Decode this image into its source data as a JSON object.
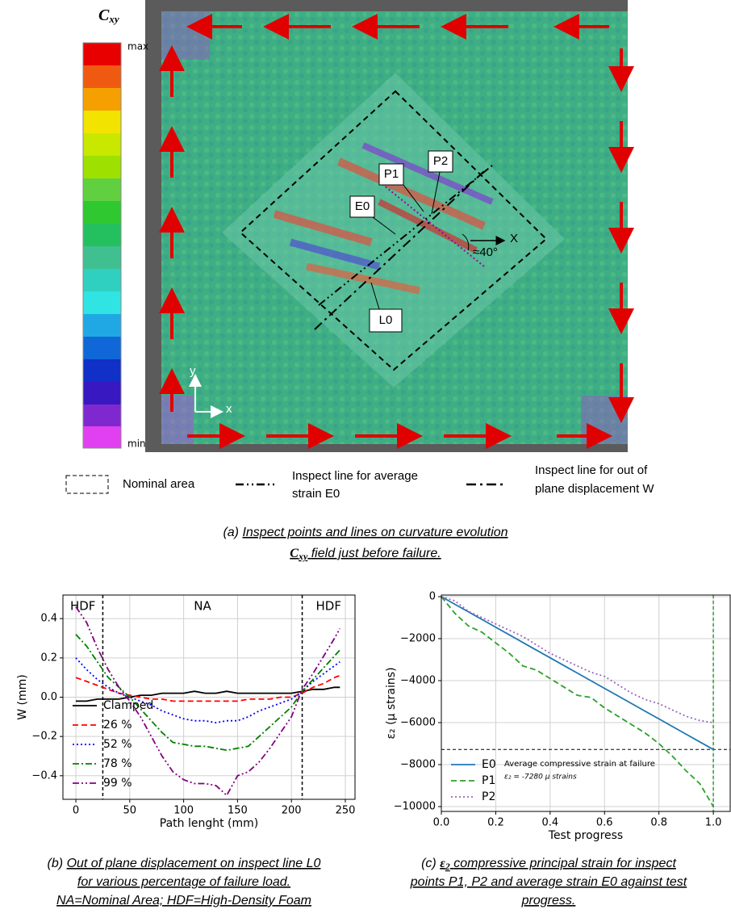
{
  "panel_a": {
    "colorbar_symbol": "C",
    "colorbar_sub": "xy",
    "colorbar_max": "max",
    "colorbar_min": "min",
    "point_labels": [
      "P1",
      "P2",
      "E0",
      "L0"
    ],
    "axis_x": "x",
    "axis_y": "y",
    "rotated_axis": "X",
    "angle": "≈40°",
    "legend": [
      {
        "label_lines": [
          "Nominal area"
        ]
      },
      {
        "label_lines": [
          "Inspect line for average",
          "strain E0"
        ]
      },
      {
        "label_lines": [
          "Inspect line for out of",
          "plane displacement W"
        ]
      }
    ],
    "caption_prefix": "(a)",
    "caption_1": "Inspect points and lines on curvature evolution",
    "caption_symbol": "C",
    "caption_sub": "xy",
    "caption_2": "field just before failure."
  },
  "chart_data": [
    {
      "type": "line",
      "xlabel": "Path lenght (mm)",
      "ylabel": "W (mm)",
      "x": [
        0,
        10,
        20,
        30,
        40,
        50,
        60,
        70,
        80,
        90,
        100,
        110,
        120,
        130,
        140,
        150,
        160,
        170,
        180,
        190,
        200,
        210,
        220,
        230,
        240,
        245
      ],
      "series": [
        {
          "name": "Clamped",
          "color": "#000000",
          "linestyle": "solid",
          "values": [
            -0.02,
            -0.02,
            -0.01,
            -0.01,
            -0.01,
            0.0,
            0.01,
            0.01,
            0.02,
            0.02,
            0.02,
            0.03,
            0.02,
            0.02,
            0.03,
            0.02,
            0.02,
            0.02,
            0.02,
            0.02,
            0.02,
            0.03,
            0.04,
            0.04,
            0.05,
            0.05
          ]
        },
        {
          "name": "26 %",
          "color": "#ff0000",
          "linestyle": "dashed",
          "values": [
            0.1,
            0.08,
            0.06,
            0.04,
            0.02,
            0.01,
            0.0,
            -0.01,
            -0.01,
            -0.02,
            -0.02,
            -0.02,
            -0.02,
            -0.02,
            -0.02,
            -0.02,
            -0.01,
            -0.01,
            -0.01,
            0.0,
            0.0,
            0.02,
            0.05,
            0.07,
            0.1,
            0.11
          ]
        },
        {
          "name": "52 %",
          "color": "#0000ff",
          "linestyle": "dotted",
          "values": [
            0.2,
            0.14,
            0.09,
            0.05,
            0.02,
            0.0,
            -0.02,
            -0.04,
            -0.07,
            -0.09,
            -0.11,
            -0.12,
            -0.12,
            -0.13,
            -0.12,
            -0.12,
            -0.1,
            -0.07,
            -0.05,
            -0.03,
            -0.01,
            0.03,
            0.08,
            0.12,
            0.16,
            0.18
          ]
        },
        {
          "name": "78 %",
          "color": "#008000",
          "linestyle": "dashdot",
          "values": [
            0.32,
            0.26,
            0.18,
            0.1,
            0.05,
            0.0,
            -0.06,
            -0.12,
            -0.18,
            -0.23,
            -0.24,
            -0.25,
            -0.25,
            -0.26,
            -0.27,
            -0.26,
            -0.25,
            -0.2,
            -0.15,
            -0.1,
            -0.05,
            0.03,
            0.09,
            0.15,
            0.21,
            0.24
          ]
        },
        {
          "name": "99 %",
          "color": "#800080",
          "linestyle": "dashdotdot",
          "values": [
            0.46,
            0.38,
            0.25,
            0.14,
            0.05,
            -0.02,
            -0.1,
            -0.2,
            -0.3,
            -0.38,
            -0.42,
            -0.44,
            -0.44,
            -0.45,
            -0.5,
            -0.4,
            -0.38,
            -0.33,
            -0.26,
            -0.18,
            -0.1,
            0.04,
            0.12,
            0.21,
            0.3,
            0.35
          ]
        }
      ],
      "xlim": [
        -12,
        259
      ],
      "ylim": [
        -0.52,
        0.52
      ],
      "xticks": [
        0,
        50,
        100,
        150,
        200,
        250
      ],
      "yticks": [
        {
          "value": -0.4,
          "label": "−0.4"
        },
        {
          "value": -0.2,
          "label": "−0.2"
        },
        {
          "value": 0,
          "label": "0.0"
        },
        {
          "value": 0.2,
          "label": "0.2"
        },
        {
          "value": 0.4,
          "label": "0.4"
        }
      ],
      "grid": true,
      "legend": "lower left",
      "vlines": [
        25,
        210
      ],
      "vline_color": "#000000",
      "region_labels": [
        "HDF",
        "NA",
        "HDF"
      ],
      "caption_prefix": "(b)",
      "caption_lines": [
        "Out of plane displacement on inspect line L0",
        "for various percentage of failure load.",
        "NA=Nominal Area; HDF=High-Density Foam"
      ]
    },
    {
      "type": "line",
      "xlabel": "Test progress",
      "ylabel": "ε₂ (µ strains)",
      "x": [
        0,
        0.05,
        0.1,
        0.15,
        0.2,
        0.25,
        0.3,
        0.35,
        0.4,
        0.45,
        0.5,
        0.55,
        0.6,
        0.65,
        0.7,
        0.75,
        0.8,
        0.85,
        0.9,
        0.95,
        1.0
      ],
      "series": [
        {
          "name": "E0",
          "color": "#1f77b4",
          "linestyle": "solid",
          "values": [
            0,
            -364,
            -728,
            -1092,
            -1456,
            -1820,
            -2184,
            -2548,
            -2912,
            -3276,
            -3640,
            -4004,
            -4368,
            -4732,
            -5096,
            -5460,
            -5824,
            -6188,
            -6552,
            -6916,
            -7280
          ]
        },
        {
          "name": "P1",
          "color": "#2ca02c",
          "linestyle": "dashed",
          "values": [
            0,
            -800,
            -1400,
            -1700,
            -2200,
            -2700,
            -3300,
            -3500,
            -3900,
            -4300,
            -4700,
            -4800,
            -5300,
            -5700,
            -6100,
            -6500,
            -7000,
            -7600,
            -8300,
            -8900,
            -10000
          ]
        },
        {
          "name": "P2",
          "color": "#9467bd",
          "linestyle": "dotted",
          "values": [
            0,
            -200,
            -700,
            -1000,
            -1300,
            -1600,
            -1900,
            -2300,
            -2700,
            -3000,
            -3300,
            -3600,
            -3800,
            -4200,
            -4600,
            -4900,
            -5100,
            -5400,
            -5700,
            -5900,
            -6000
          ]
        }
      ],
      "xlim": [
        0,
        1.062
      ],
      "ylim": [
        -10230,
        77
      ],
      "xticks": [
        {
          "value": 0,
          "label": "0.0"
        },
        0.2,
        0.4,
        0.6,
        0.8,
        {
          "value": 1,
          "label": "1.0"
        }
      ],
      "yticks": [
        {
          "value": -10000,
          "label": "−10000"
        },
        {
          "value": -8000,
          "label": "−8000"
        },
        {
          "value": -6000,
          "label": "−6000"
        },
        {
          "value": -4000,
          "label": "−4000"
        },
        {
          "value": -2000,
          "label": "−2000"
        },
        0
      ],
      "grid": true,
      "legend": "lower left",
      "vlines": [
        1.0
      ],
      "vline_color": "#2ca02c",
      "hlines": [
        -7280
      ],
      "annotations": [
        "Average compressive strain at failure",
        "ε₂ = -7280 µ strains"
      ],
      "caption_prefix": "(c)",
      "caption_symbol": "ε",
      "caption_sub": "2",
      "caption_lines": [
        "compressive principal strain for inspect",
        "points P1, P2 and average strain E0 against test",
        "progress."
      ]
    }
  ]
}
